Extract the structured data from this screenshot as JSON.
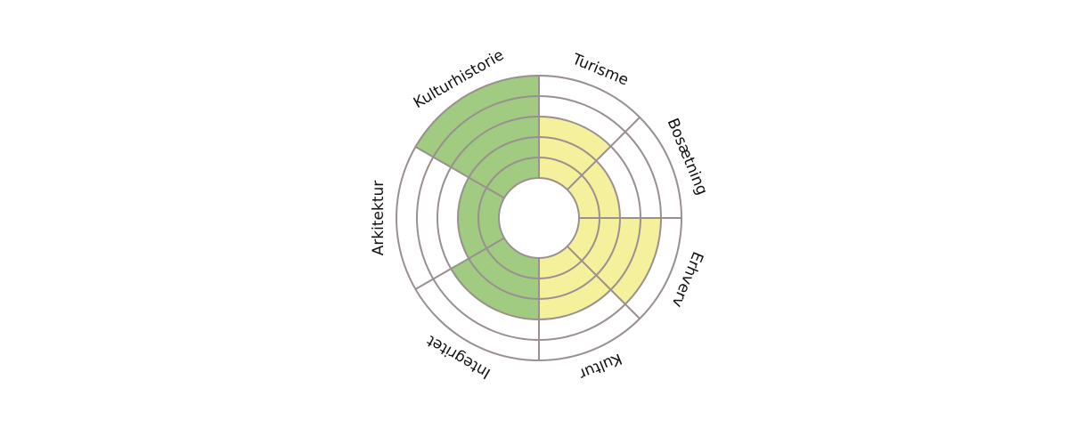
{
  "chart_data": {
    "type": "polar_bar",
    "rlim": [
      0,
      5
    ],
    "rticks": [
      1,
      2,
      3,
      4,
      5
    ],
    "groups": [
      {
        "color": "#f4f09c",
        "categories": [
          "Turisme",
          "Bosætning",
          "Erhverv",
          "Kultur"
        ],
        "values": [
          3,
          2,
          4,
          3
        ]
      },
      {
        "color": "#a0cb80",
        "categories": [
          "Integritet",
          "Arkitektur",
          "Kulturhistorie"
        ],
        "values": [
          3,
          2,
          5
        ]
      }
    ]
  }
}
